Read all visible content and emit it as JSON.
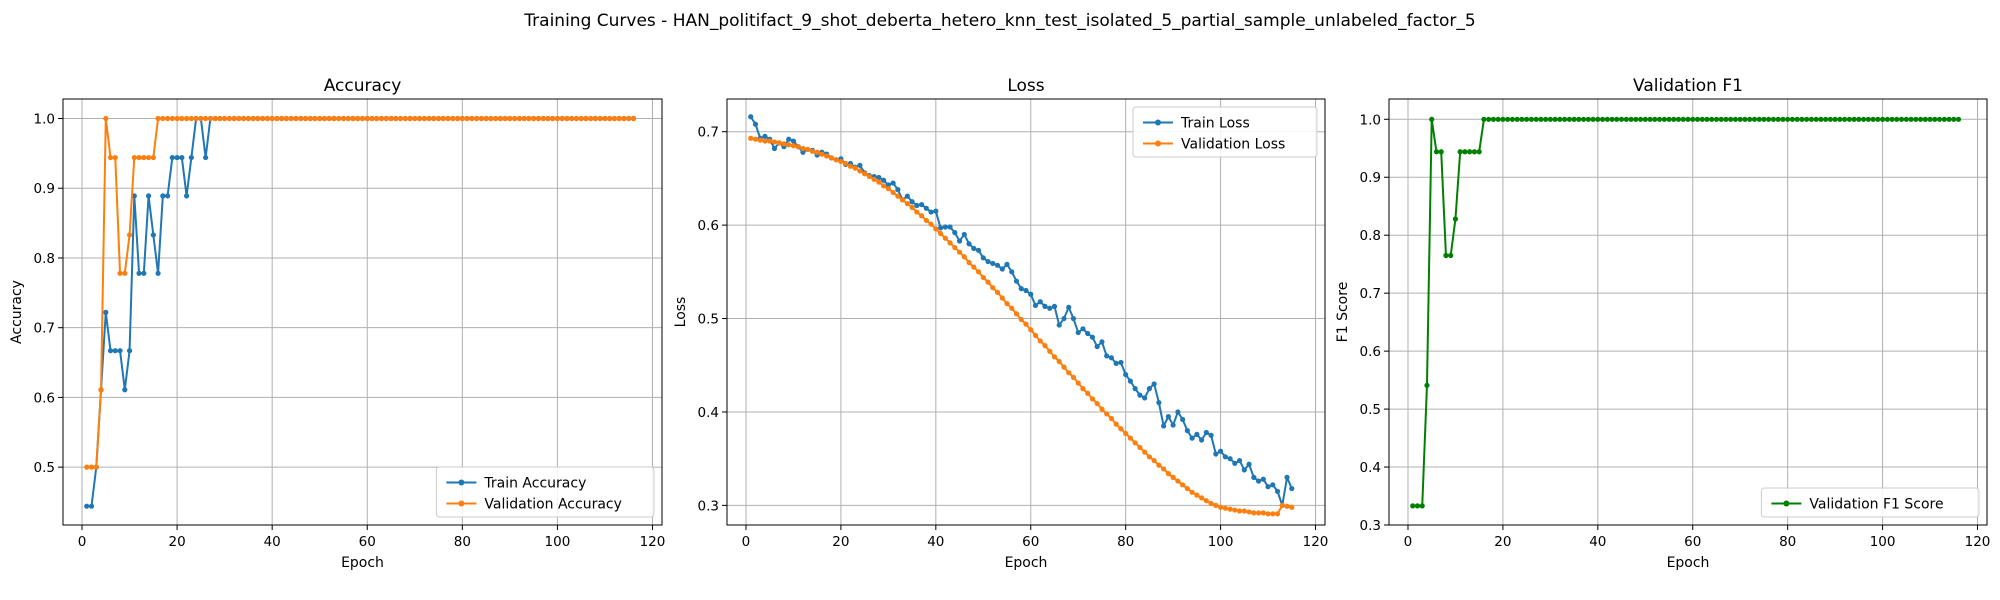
{
  "figure": {
    "suptitle": "Training Curves - HAN_politifact_9_shot_deberta_hetero_knn_test_isolated_5_partial_sample_unlabeled_factor_5"
  },
  "colors": {
    "train": "#1f77b4",
    "validation": "#ff7f0e",
    "f1": "#008000",
    "grid": "#b0b0b0"
  },
  "chart_data": [
    {
      "type": "line",
      "title": "Accuracy",
      "xlabel": "Epoch",
      "ylabel": "Accuracy",
      "xlim": [
        -4,
        122
      ],
      "ylim": [
        0.417,
        1.028
      ],
      "xticks": [
        0,
        20,
        40,
        60,
        80,
        100,
        120
      ],
      "yticks": [
        0.5,
        0.6,
        0.7,
        0.8,
        0.9,
        1.0
      ],
      "ytick_labels": [
        "0.5",
        "0.6",
        "0.7",
        "0.8",
        "0.9",
        "1.0"
      ],
      "grid": true,
      "legend": "lower-right",
      "series": [
        {
          "name": "Train Accuracy",
          "color": "#1f77b4",
          "x_start": 1,
          "values": [
            0.444,
            0.444,
            0.5,
            0.611,
            0.722,
            0.667,
            0.667,
            0.667,
            0.611,
            0.667,
            0.889,
            0.778,
            0.778,
            0.889,
            0.833,
            0.778,
            0.889,
            0.889,
            0.944,
            0.944,
            0.944,
            0.889,
            0.944,
            1.0,
            1.0,
            0.944,
            1.0,
            1.0,
            1.0,
            1.0,
            1.0,
            1.0,
            1.0,
            1.0,
            1.0,
            1.0,
            1.0,
            1.0,
            1.0,
            1.0,
            1.0,
            1.0,
            1.0,
            1.0,
            1.0,
            1.0,
            1.0,
            1.0,
            1.0,
            1.0,
            1.0,
            1.0,
            1.0,
            1.0,
            1.0,
            1.0,
            1.0,
            1.0,
            1.0,
            1.0,
            1.0,
            1.0,
            1.0,
            1.0,
            1.0,
            1.0,
            1.0,
            1.0,
            1.0,
            1.0,
            1.0,
            1.0,
            1.0,
            1.0,
            1.0,
            1.0,
            1.0,
            1.0,
            1.0,
            1.0,
            1.0,
            1.0,
            1.0,
            1.0,
            1.0,
            1.0,
            1.0,
            1.0,
            1.0,
            1.0,
            1.0,
            1.0,
            1.0,
            1.0,
            1.0,
            1.0,
            1.0,
            1.0,
            1.0,
            1.0,
            1.0,
            1.0,
            1.0,
            1.0,
            1.0,
            1.0,
            1.0,
            1.0,
            1.0,
            1.0,
            1.0,
            1.0,
            1.0,
            1.0,
            1.0,
            1.0
          ]
        },
        {
          "name": "Validation Accuracy",
          "color": "#ff7f0e",
          "x_start": 1,
          "values": [
            0.5,
            0.5,
            0.5,
            0.611,
            1.0,
            0.944,
            0.944,
            0.778,
            0.778,
            0.833,
            0.944,
            0.944,
            0.944,
            0.944,
            0.944,
            1.0,
            1.0,
            1.0,
            1.0,
            1.0,
            1.0,
            1.0,
            1.0,
            1.0,
            1.0,
            1.0,
            1.0,
            1.0,
            1.0,
            1.0,
            1.0,
            1.0,
            1.0,
            1.0,
            1.0,
            1.0,
            1.0,
            1.0,
            1.0,
            1.0,
            1.0,
            1.0,
            1.0,
            1.0,
            1.0,
            1.0,
            1.0,
            1.0,
            1.0,
            1.0,
            1.0,
            1.0,
            1.0,
            1.0,
            1.0,
            1.0,
            1.0,
            1.0,
            1.0,
            1.0,
            1.0,
            1.0,
            1.0,
            1.0,
            1.0,
            1.0,
            1.0,
            1.0,
            1.0,
            1.0,
            1.0,
            1.0,
            1.0,
            1.0,
            1.0,
            1.0,
            1.0,
            1.0,
            1.0,
            1.0,
            1.0,
            1.0,
            1.0,
            1.0,
            1.0,
            1.0,
            1.0,
            1.0,
            1.0,
            1.0,
            1.0,
            1.0,
            1.0,
            1.0,
            1.0,
            1.0,
            1.0,
            1.0,
            1.0,
            1.0,
            1.0,
            1.0,
            1.0,
            1.0,
            1.0,
            1.0,
            1.0,
            1.0,
            1.0,
            1.0,
            1.0,
            1.0,
            1.0,
            1.0,
            1.0,
            1.0
          ]
        }
      ]
    },
    {
      "type": "line",
      "title": "Loss",
      "xlabel": "Epoch",
      "ylabel": "Loss",
      "xlim": [
        -4,
        122
      ],
      "ylim": [
        0.279,
        0.735
      ],
      "xticks": [
        0,
        20,
        40,
        60,
        80,
        100,
        120
      ],
      "yticks": [
        0.3,
        0.4,
        0.5,
        0.6,
        0.7
      ],
      "ytick_labels": [
        "0.3",
        "0.4",
        "0.5",
        "0.6",
        "0.7"
      ],
      "grid": true,
      "legend": "top-right",
      "series": [
        {
          "name": "Train Loss",
          "color": "#1f77b4",
          "x_start": 1,
          "values": [
            0.716,
            0.708,
            0.693,
            0.695,
            0.692,
            0.682,
            0.688,
            0.684,
            0.692,
            0.69,
            0.684,
            0.678,
            0.681,
            0.68,
            0.675,
            0.678,
            0.676,
            0.672,
            0.67,
            0.671,
            0.665,
            0.666,
            0.662,
            0.664,
            0.656,
            0.653,
            0.652,
            0.651,
            0.648,
            0.643,
            0.645,
            0.638,
            0.627,
            0.631,
            0.625,
            0.621,
            0.622,
            0.618,
            0.614,
            0.615,
            0.597,
            0.598,
            0.598,
            0.592,
            0.583,
            0.59,
            0.58,
            0.575,
            0.573,
            0.565,
            0.561,
            0.559,
            0.557,
            0.553,
            0.558,
            0.55,
            0.54,
            0.532,
            0.53,
            0.526,
            0.514,
            0.518,
            0.513,
            0.511,
            0.513,
            0.493,
            0.5,
            0.512,
            0.5,
            0.485,
            0.489,
            0.484,
            0.48,
            0.47,
            0.475,
            0.46,
            0.458,
            0.452,
            0.453,
            0.44,
            0.433,
            0.425,
            0.418,
            0.415,
            0.425,
            0.43,
            0.41,
            0.385,
            0.395,
            0.386,
            0.4,
            0.392,
            0.38,
            0.372,
            0.376,
            0.37,
            0.378,
            0.375,
            0.355,
            0.358,
            0.352,
            0.35,
            0.345,
            0.348,
            0.338,
            0.344,
            0.33,
            0.326,
            0.328,
            0.32,
            0.322,
            0.315,
            0.3,
            0.33,
            0.318
          ]
        },
        {
          "name": "Validation Loss",
          "color": "#ff7f0e",
          "x_start": 1,
          "values": [
            0.693,
            0.692,
            0.691,
            0.69,
            0.69,
            0.689,
            0.688,
            0.687,
            0.686,
            0.685,
            0.684,
            0.682,
            0.681,
            0.679,
            0.678,
            0.676,
            0.674,
            0.672,
            0.67,
            0.668,
            0.666,
            0.663,
            0.661,
            0.658,
            0.655,
            0.652,
            0.649,
            0.646,
            0.642,
            0.639,
            0.635,
            0.631,
            0.627,
            0.623,
            0.619,
            0.614,
            0.61,
            0.605,
            0.601,
            0.596,
            0.591,
            0.586,
            0.581,
            0.576,
            0.571,
            0.566,
            0.56,
            0.555,
            0.55,
            0.544,
            0.539,
            0.533,
            0.528,
            0.522,
            0.516,
            0.511,
            0.505,
            0.499,
            0.494,
            0.488,
            0.482,
            0.476,
            0.471,
            0.465,
            0.459,
            0.454,
            0.448,
            0.442,
            0.437,
            0.431,
            0.425,
            0.42,
            0.414,
            0.409,
            0.403,
            0.398,
            0.393,
            0.387,
            0.382,
            0.377,
            0.372,
            0.367,
            0.362,
            0.357,
            0.352,
            0.348,
            0.343,
            0.339,
            0.334,
            0.33,
            0.326,
            0.322,
            0.318,
            0.314,
            0.311,
            0.308,
            0.305,
            0.302,
            0.3,
            0.298,
            0.297,
            0.296,
            0.295,
            0.294,
            0.294,
            0.293,
            0.292,
            0.292,
            0.292,
            0.291,
            0.291,
            0.291,
            0.3,
            0.299,
            0.298
          ]
        }
      ]
    },
    {
      "type": "line",
      "title": "Validation F1",
      "xlabel": "Epoch",
      "ylabel": "F1 Score",
      "xlim": [
        -4,
        122
      ],
      "ylim": [
        0.3,
        1.035
      ],
      "xticks": [
        0,
        20,
        40,
        60,
        80,
        100,
        120
      ],
      "yticks": [
        0.3,
        0.4,
        0.5,
        0.6,
        0.7,
        0.8,
        0.9,
        1.0
      ],
      "ytick_labels": [
        "0.3",
        "0.4",
        "0.5",
        "0.6",
        "0.7",
        "0.8",
        "0.9",
        "1.0"
      ],
      "grid": true,
      "legend": "lower-right",
      "series": [
        {
          "name": "Validation F1 Score",
          "color": "#008000",
          "x_start": 1,
          "values": [
            0.333,
            0.333,
            0.333,
            0.541,
            1.0,
            0.944,
            0.944,
            0.765,
            0.765,
            0.828,
            0.944,
            0.944,
            0.944,
            0.944,
            0.944,
            1.0,
            1.0,
            1.0,
            1.0,
            1.0,
            1.0,
            1.0,
            1.0,
            1.0,
            1.0,
            1.0,
            1.0,
            1.0,
            1.0,
            1.0,
            1.0,
            1.0,
            1.0,
            1.0,
            1.0,
            1.0,
            1.0,
            1.0,
            1.0,
            1.0,
            1.0,
            1.0,
            1.0,
            1.0,
            1.0,
            1.0,
            1.0,
            1.0,
            1.0,
            1.0,
            1.0,
            1.0,
            1.0,
            1.0,
            1.0,
            1.0,
            1.0,
            1.0,
            1.0,
            1.0,
            1.0,
            1.0,
            1.0,
            1.0,
            1.0,
            1.0,
            1.0,
            1.0,
            1.0,
            1.0,
            1.0,
            1.0,
            1.0,
            1.0,
            1.0,
            1.0,
            1.0,
            1.0,
            1.0,
            1.0,
            1.0,
            1.0,
            1.0,
            1.0,
            1.0,
            1.0,
            1.0,
            1.0,
            1.0,
            1.0,
            1.0,
            1.0,
            1.0,
            1.0,
            1.0,
            1.0,
            1.0,
            1.0,
            1.0,
            1.0,
            1.0,
            1.0,
            1.0,
            1.0,
            1.0,
            1.0,
            1.0,
            1.0,
            1.0,
            1.0,
            1.0,
            1.0,
            1.0,
            1.0,
            1.0,
            1.0
          ]
        }
      ]
    }
  ]
}
